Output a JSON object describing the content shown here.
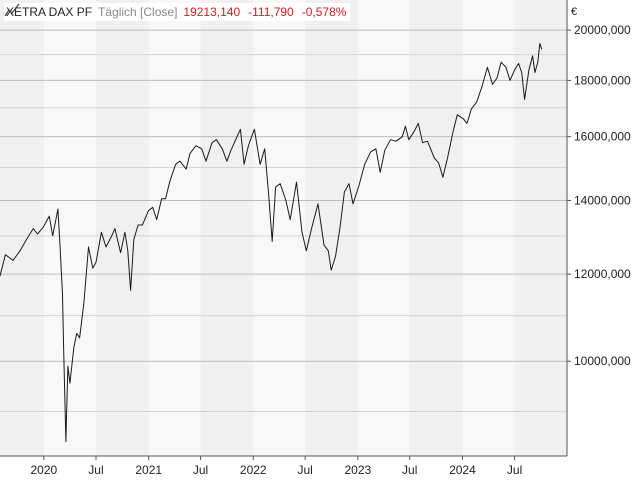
{
  "header": {
    "instrument": "XETRA DAX PF",
    "frequency": "Täglich [Close]",
    "last": "19213,140",
    "change": "-111,790",
    "change_pct": "-0,578%"
  },
  "chart_data": {
    "type": "line",
    "scale": "log",
    "currency_label": "€",
    "ylim": [
      8200,
      21300
    ],
    "y_ticks": [
      {
        "value": 10000,
        "label": "10000,000"
      },
      {
        "value": 12000,
        "label": "12000,000"
      },
      {
        "value": 14000,
        "label": "14000,000"
      },
      {
        "value": 16000,
        "label": "16000,000"
      },
      {
        "value": 18000,
        "label": "18000,000"
      },
      {
        "value": 20000,
        "label": "20000,000"
      }
    ],
    "y_minor_gridlines": [
      9000,
      11000,
      13000,
      15000,
      17000,
      19000
    ],
    "xlim": [
      "2019-08-01",
      "2024-12-31"
    ],
    "x_ticks": [
      {
        "date": "2020-01-01",
        "label": "2020"
      },
      {
        "date": "2020-07-01",
        "label": "Jul"
      },
      {
        "date": "2021-01-01",
        "label": "2021"
      },
      {
        "date": "2021-07-01",
        "label": "Jul"
      },
      {
        "date": "2022-01-01",
        "label": "2022"
      },
      {
        "date": "2022-07-01",
        "label": "Jul"
      },
      {
        "date": "2023-01-01",
        "label": "2023"
      },
      {
        "date": "2023-07-01",
        "label": "Jul"
      },
      {
        "date": "2024-01-01",
        "label": "2024"
      },
      {
        "date": "2024-07-01",
        "label": "Jul"
      }
    ],
    "grid": true,
    "line_color": "#1a1a1a",
    "series": [
      {
        "points": [
          [
            "2019-08-01",
            11950
          ],
          [
            "2019-08-20",
            12500
          ],
          [
            "2019-09-15",
            12350
          ],
          [
            "2019-10-10",
            12600
          ],
          [
            "2019-11-01",
            12900
          ],
          [
            "2019-11-25",
            13200
          ],
          [
            "2019-12-10",
            13050
          ],
          [
            "2019-12-31",
            13250
          ],
          [
            "2020-01-20",
            13550
          ],
          [
            "2020-02-01",
            13000
          ],
          [
            "2020-02-19",
            13750
          ],
          [
            "2020-02-26",
            12800
          ],
          [
            "2020-03-06",
            11500
          ],
          [
            "2020-03-10",
            10300
          ],
          [
            "2020-03-16",
            8900
          ],
          [
            "2020-03-18",
            8450
          ],
          [
            "2020-03-20",
            8900
          ],
          [
            "2020-03-25",
            9900
          ],
          [
            "2020-04-01",
            9550
          ],
          [
            "2020-04-15",
            10300
          ],
          [
            "2020-04-25",
            10600
          ],
          [
            "2020-05-05",
            10500
          ],
          [
            "2020-05-20",
            11300
          ],
          [
            "2020-06-05",
            12700
          ],
          [
            "2020-06-20",
            12150
          ],
          [
            "2020-07-01",
            12300
          ],
          [
            "2020-07-20",
            13100
          ],
          [
            "2020-08-05",
            12700
          ],
          [
            "2020-08-25",
            13000
          ],
          [
            "2020-09-05",
            13200
          ],
          [
            "2020-09-25",
            12550
          ],
          [
            "2020-10-10",
            13100
          ],
          [
            "2020-10-20",
            12600
          ],
          [
            "2020-10-30",
            11600
          ],
          [
            "2020-11-10",
            12900
          ],
          [
            "2020-11-25",
            13300
          ],
          [
            "2020-12-10",
            13300
          ],
          [
            "2020-12-31",
            13700
          ],
          [
            "2021-01-15",
            13800
          ],
          [
            "2021-01-29",
            13450
          ],
          [
            "2021-02-15",
            14050
          ],
          [
            "2021-03-01",
            14050
          ],
          [
            "2021-03-15",
            14550
          ],
          [
            "2021-04-05",
            15100
          ],
          [
            "2021-04-20",
            15200
          ],
          [
            "2021-05-12",
            14950
          ],
          [
            "2021-05-25",
            15450
          ],
          [
            "2021-06-15",
            15700
          ],
          [
            "2021-07-05",
            15600
          ],
          [
            "2021-07-20",
            15200
          ],
          [
            "2021-08-10",
            15800
          ],
          [
            "2021-08-25",
            15900
          ],
          [
            "2021-09-15",
            15600
          ],
          [
            "2021-10-01",
            15200
          ],
          [
            "2021-10-15",
            15550
          ],
          [
            "2021-11-10",
            16100
          ],
          [
            "2021-11-17",
            16250
          ],
          [
            "2021-11-30",
            15100
          ],
          [
            "2021-12-15",
            15700
          ],
          [
            "2022-01-05",
            16250
          ],
          [
            "2022-01-25",
            15100
          ],
          [
            "2022-02-10",
            15600
          ],
          [
            "2022-02-24",
            14150
          ],
          [
            "2022-03-08",
            12850
          ],
          [
            "2022-03-20",
            14400
          ],
          [
            "2022-04-05",
            14500
          ],
          [
            "2022-04-25",
            14000
          ],
          [
            "2022-05-10",
            13450
          ],
          [
            "2022-06-01",
            14550
          ],
          [
            "2022-06-20",
            13100
          ],
          [
            "2022-07-05",
            12600
          ],
          [
            "2022-07-25",
            13250
          ],
          [
            "2022-08-15",
            13900
          ],
          [
            "2022-09-05",
            12750
          ],
          [
            "2022-09-20",
            12600
          ],
          [
            "2022-09-30",
            12100
          ],
          [
            "2022-10-15",
            12450
          ],
          [
            "2022-10-31",
            13250
          ],
          [
            "2022-11-15",
            14250
          ],
          [
            "2022-12-01",
            14500
          ],
          [
            "2022-12-15",
            13900
          ],
          [
            "2023-01-05",
            14450
          ],
          [
            "2023-01-25",
            15100
          ],
          [
            "2023-02-15",
            15500
          ],
          [
            "2023-03-05",
            15600
          ],
          [
            "2023-03-20",
            14850
          ],
          [
            "2023-04-05",
            15550
          ],
          [
            "2023-04-25",
            15900
          ],
          [
            "2023-05-15",
            15850
          ],
          [
            "2023-06-05",
            16000
          ],
          [
            "2023-06-16",
            16350
          ],
          [
            "2023-06-28",
            15900
          ],
          [
            "2023-07-15",
            16150
          ],
          [
            "2023-07-31",
            16450
          ],
          [
            "2023-08-15",
            15800
          ],
          [
            "2023-09-01",
            15850
          ],
          [
            "2023-09-25",
            15300
          ],
          [
            "2023-10-10",
            15150
          ],
          [
            "2023-10-25",
            14700
          ],
          [
            "2023-11-10",
            15300
          ],
          [
            "2023-11-30",
            16200
          ],
          [
            "2023-12-14",
            16750
          ],
          [
            "2024-01-05",
            16600
          ],
          [
            "2024-01-17",
            16450
          ],
          [
            "2024-02-01",
            16950
          ],
          [
            "2024-02-20",
            17200
          ],
          [
            "2024-03-10",
            17800
          ],
          [
            "2024-03-28",
            18500
          ],
          [
            "2024-04-15",
            17850
          ],
          [
            "2024-05-01",
            18100
          ],
          [
            "2024-05-15",
            18700
          ],
          [
            "2024-06-01",
            18500
          ],
          [
            "2024-06-15",
            18000
          ],
          [
            "2024-07-01",
            18400
          ],
          [
            "2024-07-15",
            18650
          ],
          [
            "2024-07-26",
            18300
          ],
          [
            "2024-08-05",
            17300
          ],
          [
            "2024-08-20",
            18400
          ],
          [
            "2024-09-02",
            18950
          ],
          [
            "2024-09-10",
            18300
          ],
          [
            "2024-09-20",
            18700
          ],
          [
            "2024-09-27",
            19450
          ],
          [
            "2024-10-04",
            19213
          ]
        ]
      }
    ]
  }
}
